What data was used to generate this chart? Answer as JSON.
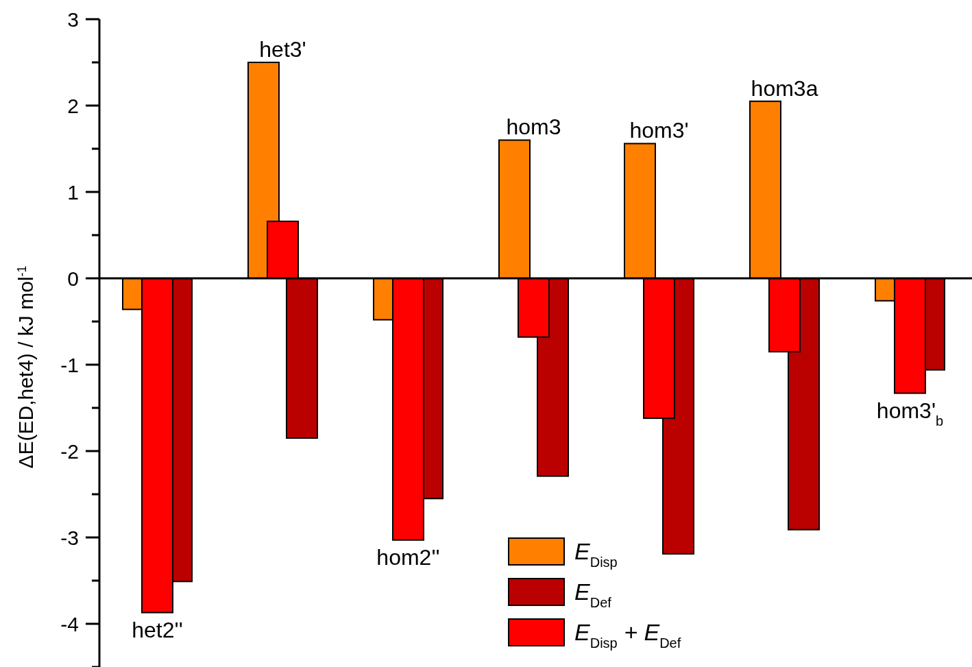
{
  "chart_data": {
    "type": "bar",
    "ylabel": "ΔE(ED,het4) / kJ mol$^{-1}$",
    "categories": [
      null,
      null,
      null,
      null,
      null,
      null,
      null
    ],
    "series": [
      {
        "name": "E$_{Disp}$",
        "color": "#ff8000",
        "values": [
          -0.36,
          2.5,
          -0.48,
          1.6,
          1.56,
          2.05,
          -0.26
        ]
      },
      {
        "name": "E$_{Def}$",
        "color": "#bb0000",
        "values": [
          -3.51,
          -1.85,
          -2.55,
          -2.29,
          -3.19,
          -2.91,
          -1.06
        ]
      },
      {
        "name": "E$_{Disp}$ + E$_{Def}$",
        "color": "#ff0000",
        "values": [
          -3.87,
          0.66,
          -3.03,
          -0.68,
          -1.62,
          -0.85,
          -1.33
        ]
      }
    ],
    "annotations": [
      "het2''",
      "het3'",
      "hom2''",
      "hom3",
      "hom3'",
      "hom3a",
      "hom3'$_{b}$"
    ],
    "ylim": [
      -4.5,
      3
    ],
    "yticks": [
      {
        "value": -4.5,
        "label": null
      },
      -4,
      {
        "value": -3.5,
        "label": null
      },
      -3,
      {
        "value": -2.5,
        "label": null
      },
      -2,
      {
        "value": -1.5,
        "label": null
      },
      -1,
      {
        "value": -0.5,
        "label": null
      },
      0,
      {
        "value": 0.5,
        "label": null
      },
      1,
      {
        "value": 1.5,
        "label": null
      },
      2,
      {
        "value": 2.5,
        "label": null
      },
      3
    ],
    "legend": "bottom"
  }
}
